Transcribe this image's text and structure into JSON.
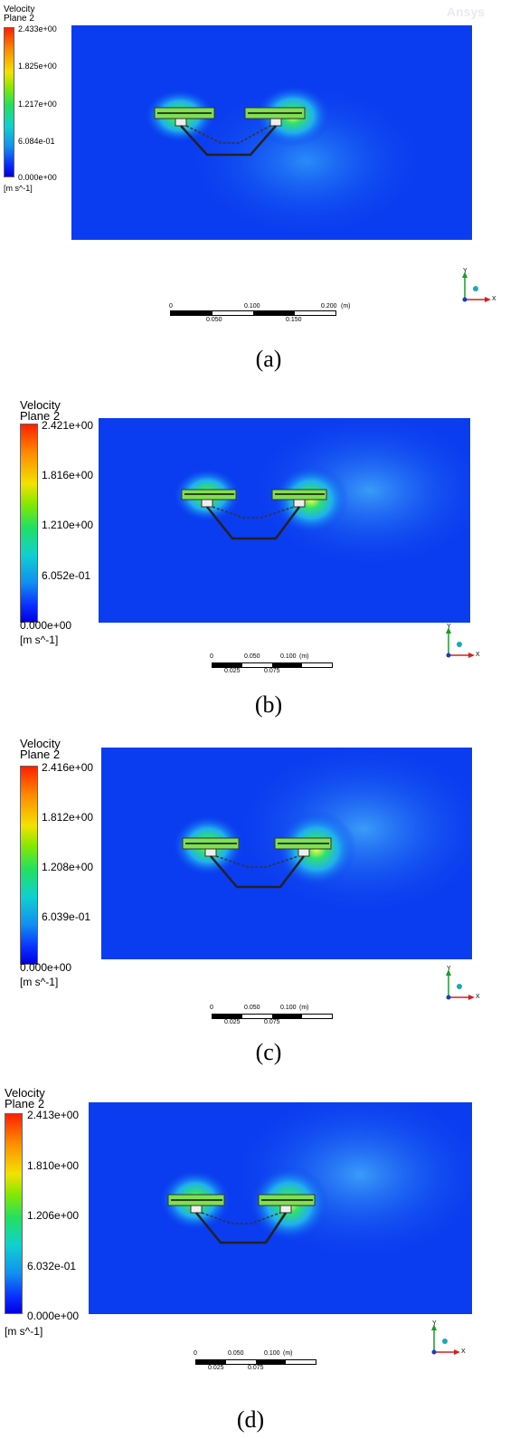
{
  "panels": [
    {
      "title": "Velocity",
      "subtitle": "Plane 2",
      "ticks": [
        "2.433e+00",
        "1.825e+00",
        "1.217e+00",
        "6.084e-01",
        "0.000e+00"
      ],
      "units": "[m s^-1]",
      "scale_labels_top": [
        "0",
        "0.100",
        "0.200",
        "(m)"
      ],
      "scale_labels_bottom": [
        "0.050",
        "0.150"
      ],
      "caption": "(a)",
      "watermark": "Ansys"
    },
    {
      "title": "Velocity",
      "subtitle": "Plane 2",
      "ticks": [
        "2.421e+00",
        "1.816e+00",
        "1.210e+00",
        "6.052e-01",
        "0.000e+00"
      ],
      "units": "[m s^-1]",
      "scale_labels_top": [
        "0",
        "0.050",
        "0.100",
        "(m)"
      ],
      "scale_labels_bottom": [
        "0.025",
        "0.075"
      ],
      "caption": "(b)"
    },
    {
      "title": "Velocity",
      "subtitle": "Plane 2",
      "ticks": [
        "2.416e+00",
        "1.812e+00",
        "1.208e+00",
        "6.039e-01",
        "0.000e+00"
      ],
      "units": "[m s^-1]",
      "scale_labels_top": [
        "0",
        "0.050",
        "0.100",
        "(m)"
      ],
      "scale_labels_bottom": [
        "0.025",
        "0.075"
      ],
      "caption": "(c)"
    },
    {
      "title": "Velocity",
      "subtitle": "Plane 2",
      "ticks": [
        "2.413e+00",
        "1.810e+00",
        "1.206e+00",
        "6.032e-01",
        "0.000e+00"
      ],
      "units": "[m s^-1]",
      "scale_labels_top": [
        "0",
        "0.050",
        "0.100",
        "(m)"
      ],
      "scale_labels_bottom": [
        "0.025",
        "0.075"
      ],
      "caption": "(d)"
    }
  ],
  "axes": {
    "y_label": "Y",
    "x_label": "X"
  },
  "colors": {
    "field_base": "#0a3cf0",
    "axis_y": "#1a9a2a",
    "axis_x": "#d42020",
    "axis_z": "#1aa8b8"
  }
}
